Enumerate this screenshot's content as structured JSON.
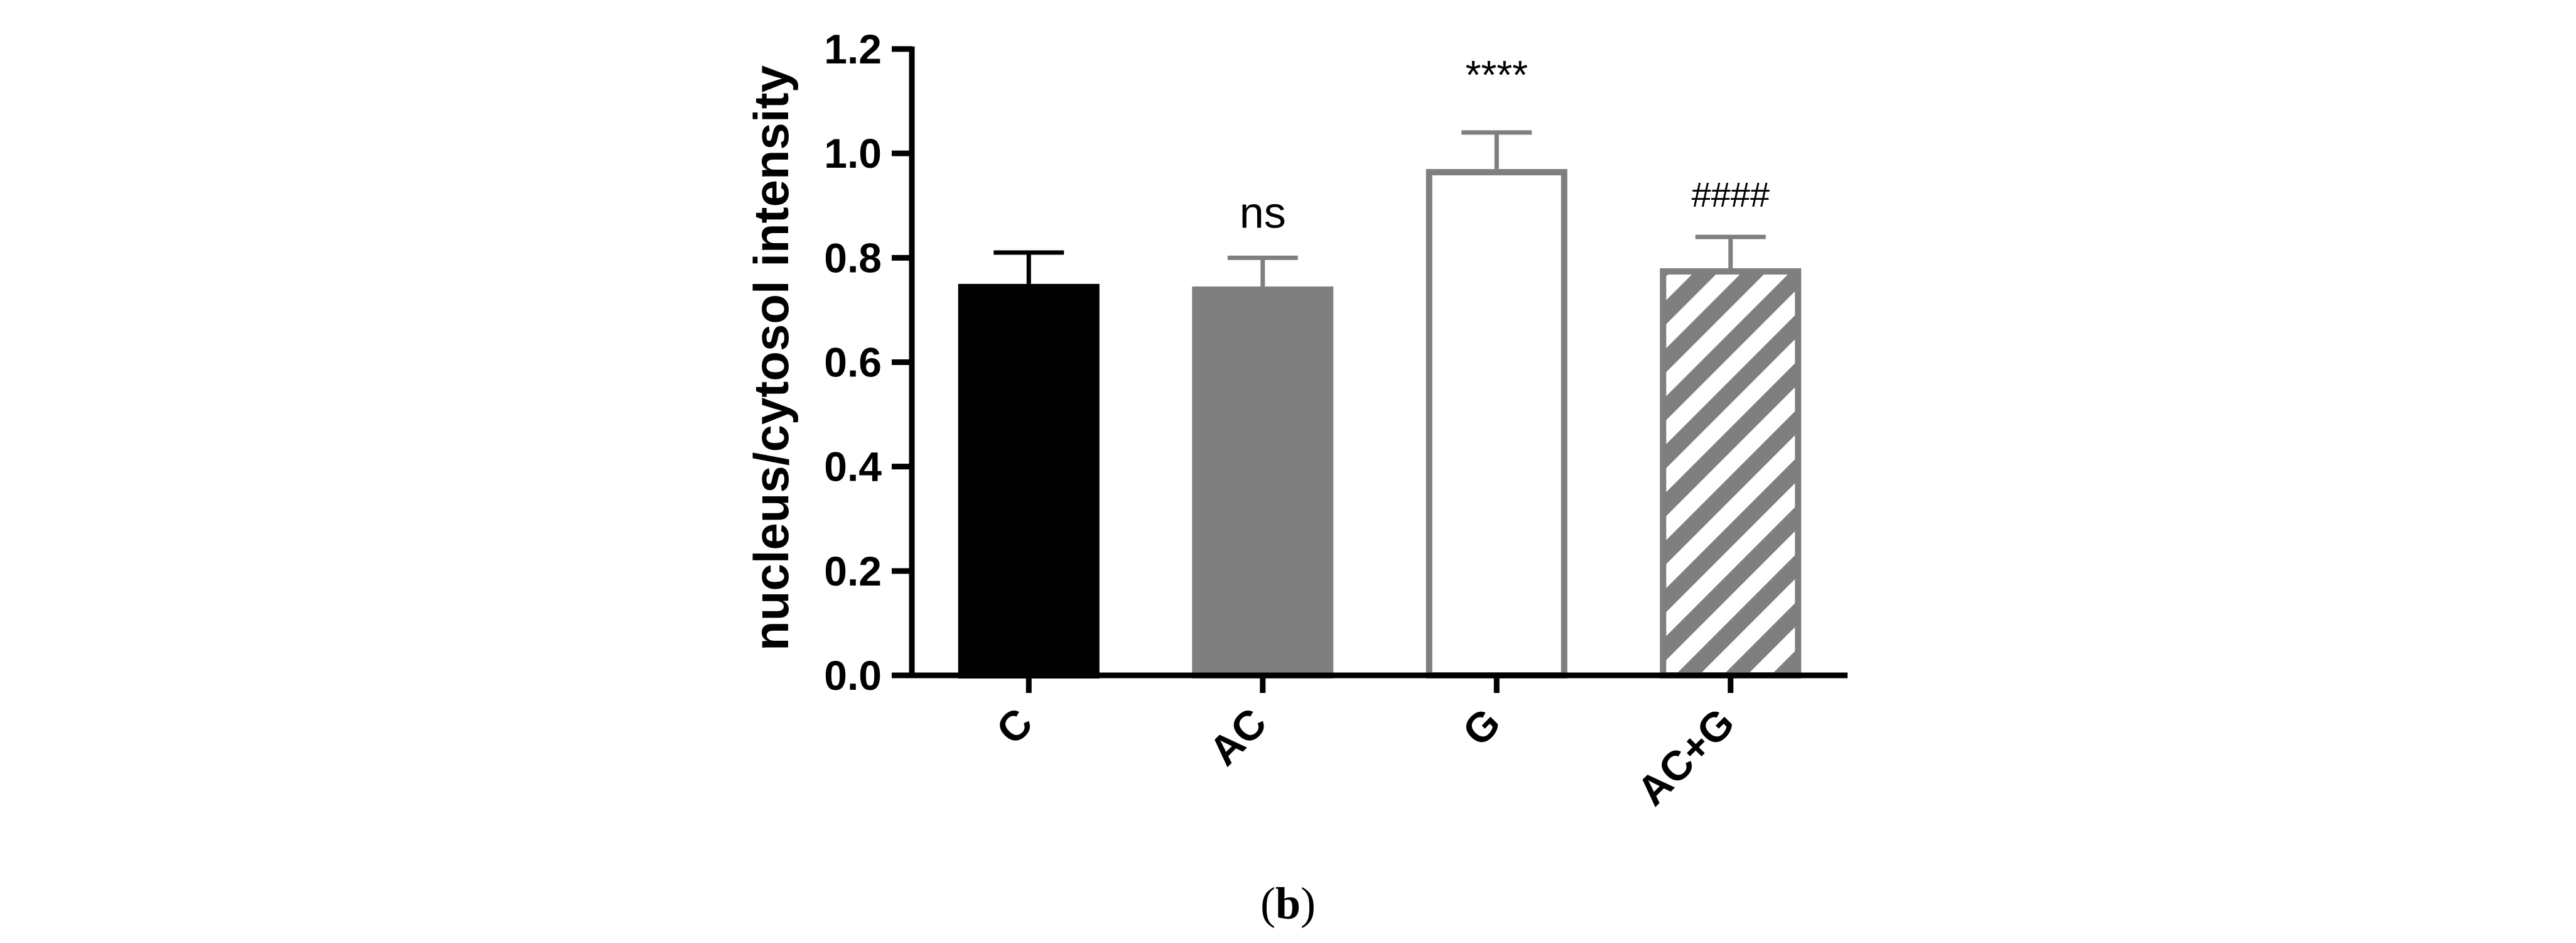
{
  "chart_data": {
    "type": "bar",
    "categories": [
      "C",
      "AC",
      "G",
      "AC+G"
    ],
    "values": [
      0.75,
      0.745,
      0.97,
      0.78
    ],
    "errors": [
      0.06,
      0.055,
      0.07,
      0.06
    ],
    "styles": [
      {
        "fill": "#000000",
        "stroke": "#000000",
        "pattern": "solid"
      },
      {
        "fill": "#7f7f7f",
        "stroke": "#7f7f7f",
        "pattern": "solid"
      },
      {
        "fill": "#ffffff",
        "stroke": "#7f7f7f",
        "pattern": "hollow"
      },
      {
        "fill": "#7f7f7f",
        "stroke": "#7f7f7f",
        "pattern": "hatched"
      }
    ],
    "annotations": [
      "",
      "ns",
      "****",
      "####"
    ],
    "ylabel": "nucleus/cytosol intensity",
    "xlabel": "",
    "ylim": [
      0,
      1.2
    ],
    "yticks": [
      "0.0",
      "0.2",
      "0.4",
      "0.6",
      "0.8",
      "1.0",
      "1.2"
    ],
    "grid": false
  },
  "caption": {
    "open": "(",
    "letter": "b",
    "close": ")"
  }
}
